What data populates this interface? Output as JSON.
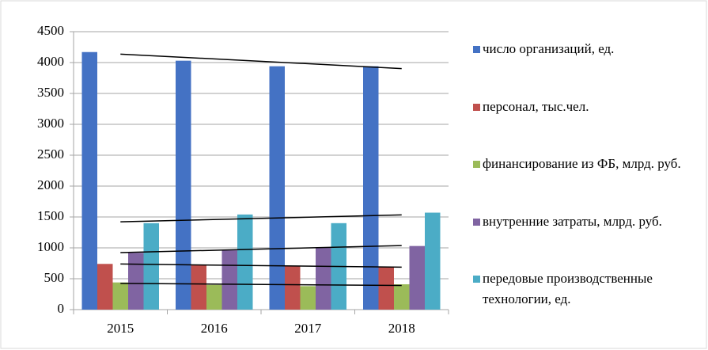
{
  "chart_data": {
    "type": "bar",
    "categories": [
      "2015",
      "2016",
      "2017",
      "2018"
    ],
    "series": [
      {
        "name": "число организаций, ед.",
        "color": "#4472c4",
        "values": [
          4170,
          4030,
          3940,
          3940
        ]
      },
      {
        "name": "персонал, тыс.чел.",
        "color": "#c0504d",
        "values": [
          740,
          720,
          700,
          690
        ]
      },
      {
        "name": "финансирование из ФБ, млрд. руб.",
        "color": "#9bbb59",
        "values": [
          440,
          400,
          380,
          410
        ]
      },
      {
        "name": "внутренние затраты, млрд. руб.",
        "color": "#8064a2",
        "values": [
          920,
          960,
          1010,
          1030
        ]
      },
      {
        "name": "передовые производственные технологии, ед.",
        "color": "#4bacc6",
        "values": [
          1400,
          1540,
          1400,
          1570
        ]
      }
    ],
    "ylim": [
      0,
      4500
    ],
    "yticks": [
      0,
      500,
      1000,
      1500,
      2000,
      2500,
      3000,
      3500,
      4000,
      4500
    ],
    "grid": true,
    "trendline": true,
    "legend": "right"
  }
}
